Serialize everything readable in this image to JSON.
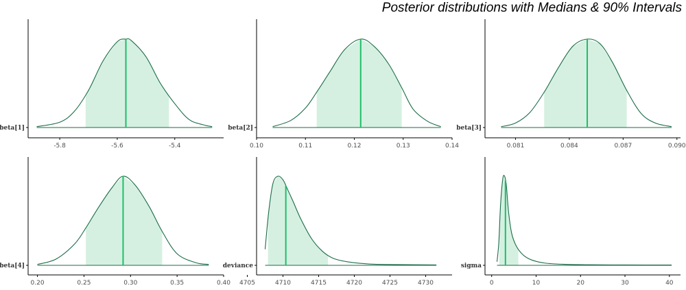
{
  "title": "Posterior distributions with Medians & 90% Intervals",
  "colors": {
    "fill": "#d5f0e1",
    "line": "#1a6b47",
    "median": "#1fbd6a",
    "axis": "#000000",
    "tick_text": "#4d4d4d"
  },
  "chart_data": [
    {
      "type": "area",
      "parameter": "beta[1]",
      "median": -5.57,
      "interval90": [
        -5.71,
        -5.42
      ],
      "xlim": [
        -5.91,
        -5.23
      ],
      "xticks": [
        -5.8,
        -5.6,
        -5.4
      ],
      "xtick_labels": [
        "-5.8",
        "-5.6",
        "-5.4"
      ],
      "density": {
        "x": [
          -5.88,
          -5.8,
          -5.75,
          -5.7,
          -5.65,
          -5.6,
          -5.57,
          -5.55,
          -5.5,
          -5.45,
          -5.4,
          -5.35,
          -5.3,
          -5.27
        ],
        "y": [
          0.01,
          0.06,
          0.18,
          0.42,
          0.75,
          0.97,
          1.0,
          0.98,
          0.8,
          0.5,
          0.27,
          0.09,
          0.03,
          0.01
        ]
      }
    },
    {
      "type": "area",
      "parameter": "beta[2]",
      "median": 0.1213,
      "interval90": [
        0.1123,
        0.1297
      ],
      "xlim": [
        0.1,
        0.14
      ],
      "xticks": [
        0.1,
        0.11,
        0.12,
        0.13,
        0.14
      ],
      "xtick_labels": [
        "0.10",
        "0.11",
        "0.12",
        "0.13",
        "0.14"
      ],
      "density": {
        "x": [
          0.1033,
          0.107,
          0.11,
          0.1123,
          0.115,
          0.118,
          0.1213,
          0.124,
          0.127,
          0.1297,
          0.132,
          0.135,
          0.1377
        ],
        "y": [
          0.01,
          0.08,
          0.22,
          0.4,
          0.63,
          0.88,
          1.0,
          0.92,
          0.72,
          0.45,
          0.21,
          0.07,
          0.01
        ]
      }
    },
    {
      "type": "area",
      "parameter": "beta[3]",
      "median": 0.085,
      "interval90": [
        0.0826,
        0.0872
      ],
      "xlim": [
        0.0793,
        0.0902
      ],
      "xticks": [
        0.081,
        0.084,
        0.087,
        0.09
      ],
      "xtick_labels": [
        "0.081",
        "0.084",
        "0.087",
        "0.090"
      ],
      "density": {
        "x": [
          0.0802,
          0.081,
          0.0818,
          0.0826,
          0.0834,
          0.0842,
          0.085,
          0.0857,
          0.0864,
          0.0872,
          0.088,
          0.0888,
          0.0897
        ],
        "y": [
          0.01,
          0.05,
          0.17,
          0.4,
          0.68,
          0.92,
          1.0,
          0.95,
          0.74,
          0.42,
          0.16,
          0.05,
          0.01
        ]
      }
    },
    {
      "type": "area",
      "parameter": "beta[4]",
      "median": 0.292,
      "interval90": [
        0.252,
        0.334
      ],
      "xlim": [
        0.19,
        0.4
      ],
      "xticks": [
        0.2,
        0.25,
        0.3,
        0.35,
        0.4
      ],
      "xtick_labels": [
        "0.20",
        "0.25",
        "0.30",
        "0.35",
        "0.40"
      ],
      "density": {
        "x": [
          0.2,
          0.22,
          0.24,
          0.252,
          0.265,
          0.28,
          0.292,
          0.305,
          0.32,
          0.334,
          0.35,
          0.37,
          0.384
        ],
        "y": [
          0.01,
          0.07,
          0.24,
          0.42,
          0.64,
          0.87,
          1.0,
          0.9,
          0.66,
          0.38,
          0.13,
          0.03,
          0.01
        ]
      }
    },
    {
      "type": "area",
      "parameter": "deviance",
      "median": 4710.4,
      "interval90": [
        4707.9,
        4716.3
      ],
      "xlim": [
        4706.3,
        4733.7
      ],
      "xticks": [
        4705,
        4710,
        4715,
        4720,
        4725,
        4730
      ],
      "xtick_labels": [
        "4705",
        "4710",
        "4715",
        "4720",
        "4725",
        "4730"
      ],
      "density": {
        "x": [
          4707.5,
          4708.0,
          4708.6,
          4709.3,
          4710.0,
          4710.6,
          4711.4,
          4712.5,
          4714.0,
          4715.5,
          4717.0,
          4719.0,
          4722.0,
          4726.0,
          4731.5
        ],
        "y": [
          0.18,
          0.6,
          0.92,
          1.0,
          0.96,
          0.86,
          0.72,
          0.52,
          0.3,
          0.16,
          0.08,
          0.04,
          0.015,
          0.008,
          0.004
        ]
      }
    },
    {
      "type": "area",
      "parameter": "sigma",
      "median": 3.1,
      "interval90": [
        1.7,
        6.0
      ],
      "xlim": [
        -1.5,
        42.5
      ],
      "xticks": [
        0,
        10,
        20,
        30,
        40
      ],
      "xtick_labels": [
        "0",
        "10",
        "20",
        "30",
        "40"
      ],
      "density": {
        "x": [
          1.2,
          1.6,
          2.0,
          2.5,
          2.9,
          3.3,
          3.8,
          4.5,
          5.5,
          7.0,
          9.0,
          12.0,
          16.0,
          22.0,
          30.0,
          40.5
        ],
        "y": [
          0.04,
          0.25,
          0.68,
          0.97,
          1.0,
          0.9,
          0.6,
          0.36,
          0.22,
          0.12,
          0.06,
          0.025,
          0.012,
          0.006,
          0.004,
          0.003
        ]
      }
    }
  ]
}
